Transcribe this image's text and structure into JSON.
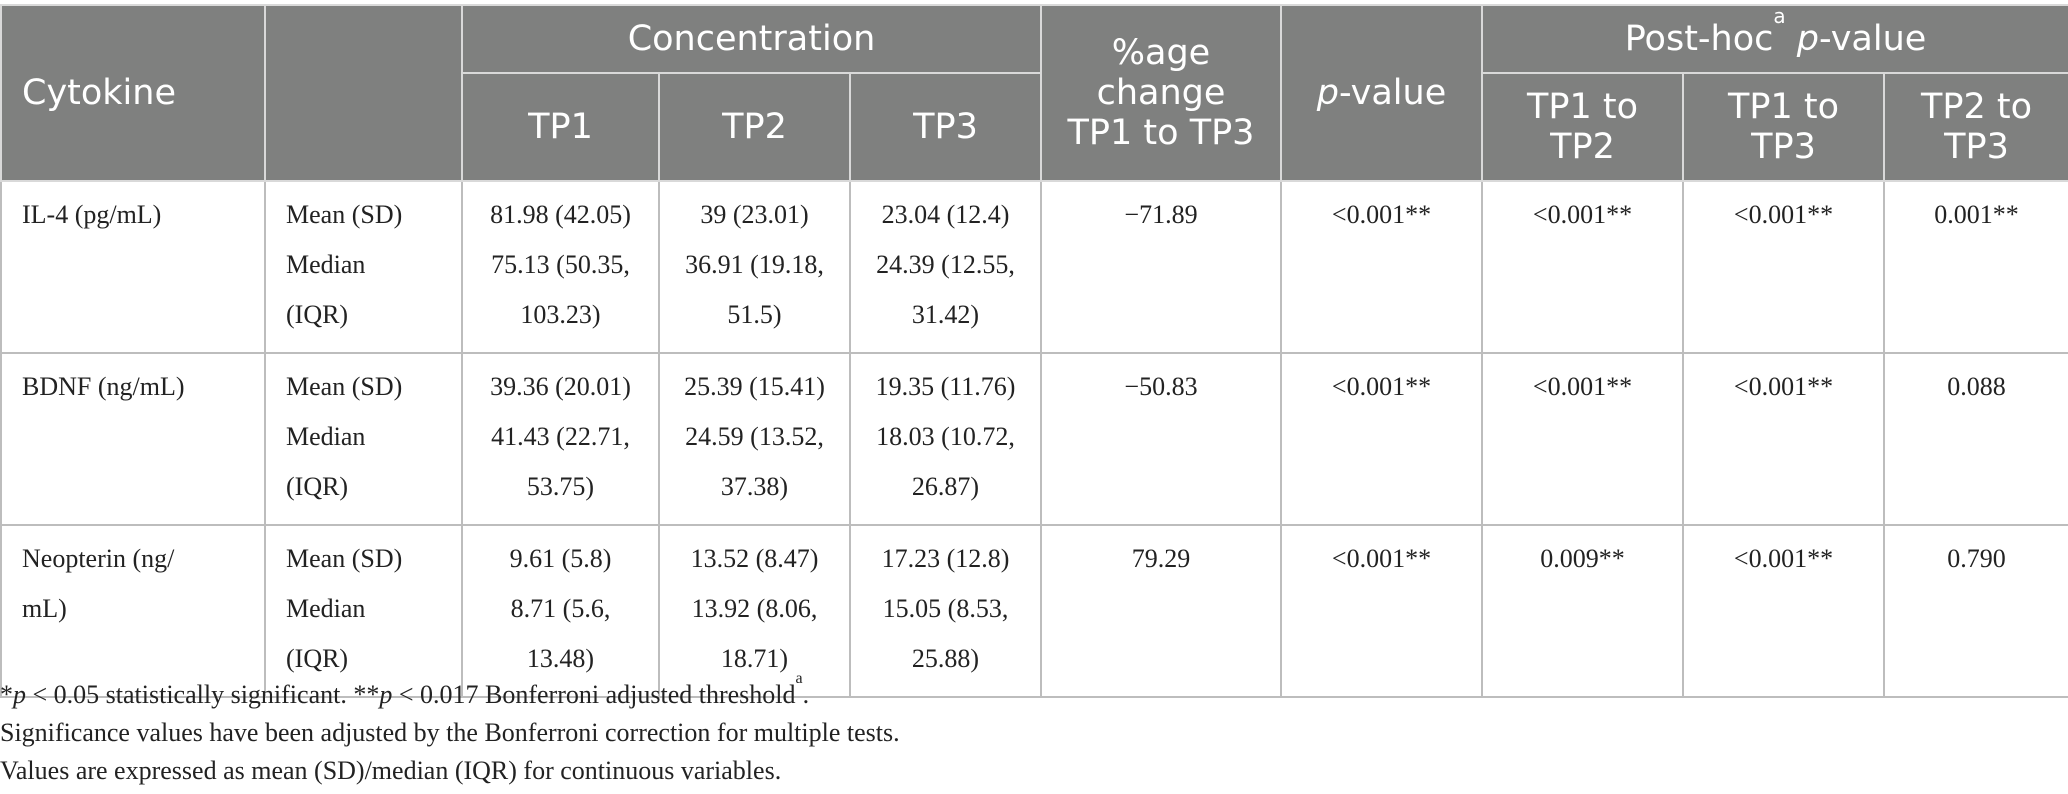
{
  "table": {
    "headers": {
      "cytokine": "Cytokine",
      "concentration": "Concentration",
      "tp1": "TP1",
      "tp2": "TP2",
      "tp3": "TP3",
      "pct_change_lines": [
        "%age",
        "change",
        "TP1 to TP3"
      ],
      "p_value_italic": "p",
      "p_value_rest": "-value",
      "posthoc_prefix": "Post-hoc",
      "posthoc_sup": "a",
      "posthoc_italic": "p",
      "posthoc_rest": "-value",
      "tp1_tp2_lines": [
        "TP1 to",
        "TP2"
      ],
      "tp1_tp3_lines": [
        "TP1 to",
        "TP3"
      ],
      "tp2_tp3_lines": [
        "TP2 to",
        "TP3"
      ]
    },
    "rows": [
      {
        "name": "IL-4 (pg/mL)",
        "stat_lines": [
          "Mean (SD)",
          "Median",
          "(IQR)"
        ],
        "tp1_lines": [
          "81.98 (42.05)",
          "75.13 (50.35,",
          "103.23)"
        ],
        "tp2_lines": [
          "39 (23.01)",
          "36.91 (19.18,",
          "51.5)"
        ],
        "tp3_lines": [
          "23.04 (12.4)",
          "24.39 (12.55,",
          "31.42)"
        ],
        "pct_change": "−71.89",
        "p_value": "<0.001**",
        "tp1_tp2": "<0.001**",
        "tp1_tp3": "<0.001**",
        "tp2_tp3": "0.001**"
      },
      {
        "name": "BDNF (ng/mL)",
        "stat_lines": [
          "Mean (SD)",
          "Median",
          "(IQR)"
        ],
        "tp1_lines": [
          "39.36 (20.01)",
          "41.43 (22.71,",
          "53.75)"
        ],
        "tp2_lines": [
          "25.39 (15.41)",
          "24.59 (13.52,",
          "37.38)"
        ],
        "tp3_lines": [
          "19.35 (11.76)",
          "18.03 (10.72,",
          "26.87)"
        ],
        "pct_change": "−50.83",
        "p_value": "<0.001**",
        "tp1_tp2": "<0.001**",
        "tp1_tp3": "<0.001**",
        "tp2_tp3": "0.088"
      },
      {
        "name_lines": [
          "Neopterin (ng/",
          "mL)"
        ],
        "stat_lines": [
          "Mean (SD)",
          "Median",
          "(IQR)"
        ],
        "tp1_lines": [
          "9.61 (5.8)",
          "8.71 (5.6,",
          "13.48)"
        ],
        "tp2_lines": [
          "13.52 (8.47)",
          "13.92 (8.06,",
          "18.71)"
        ],
        "tp3_lines": [
          "17.23 (12.8)",
          "15.05 (8.53,",
          "25.88)"
        ],
        "pct_change": "79.29",
        "p_value": "<0.001**",
        "tp1_tp2": "0.009**",
        "tp1_tp3": "<0.001**",
        "tp2_tp3": "0.790"
      }
    ]
  },
  "footnotes": {
    "note1_p1": "p",
    "note1_t1": " < 0.05 statistically significant. **",
    "note1_p2": "p",
    "note1_t2": " < 0.017 Bonferroni adjusted threshold",
    "note1_sup": "a",
    "note1_end": ".",
    "note1_star": "*",
    "note2": "Significance values have been adjusted by the Bonferroni correction for multiple tests.",
    "note3": "Values are expressed as mean (SD)/median (IQR) for continuous variables."
  }
}
